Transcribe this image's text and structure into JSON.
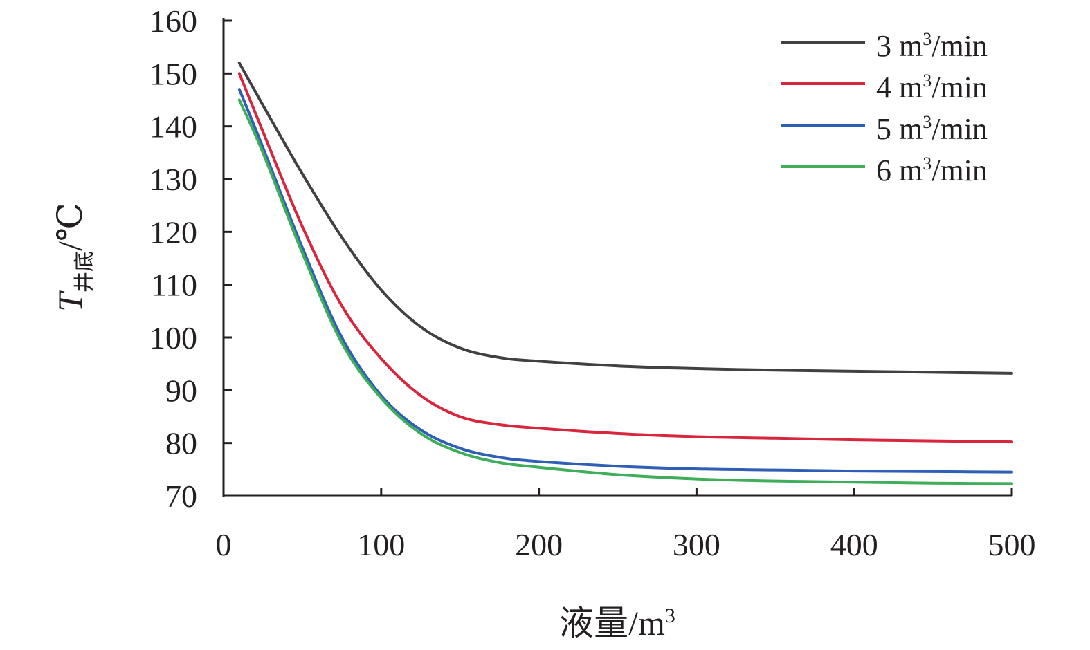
{
  "chart_data": {
    "type": "line",
    "title": "",
    "xlabel": {
      "main": "液量/m",
      "sup": "3"
    },
    "ylabel": {
      "main": "T",
      "sub": "井底",
      "tail": "/℃"
    },
    "xlim": [
      0,
      500
    ],
    "ylim": [
      70,
      160
    ],
    "xticks": [
      0,
      100,
      200,
      300,
      400,
      500
    ],
    "yticks": [
      70,
      80,
      90,
      100,
      110,
      120,
      130,
      140,
      150,
      160
    ],
    "grid": false,
    "legend_position": "top-right",
    "series": [
      {
        "name": {
          "pre": "3 m",
          "sup": "3",
          "post": "/min"
        },
        "color": "#414042",
        "points": [
          [
            10,
            152
          ],
          [
            25,
            144
          ],
          [
            50,
            131
          ],
          [
            75,
            119
          ],
          [
            100,
            109
          ],
          [
            125,
            102
          ],
          [
            150,
            98
          ],
          [
            175,
            96.2
          ],
          [
            200,
            95.5
          ],
          [
            250,
            94.6
          ],
          [
            300,
            94.1
          ],
          [
            350,
            93.8
          ],
          [
            400,
            93.6
          ],
          [
            450,
            93.4
          ],
          [
            500,
            93.2
          ]
        ]
      },
      {
        "name": {
          "pre": "4 m",
          "sup": "3",
          "post": "/min"
        },
        "color": "#d7263d",
        "points": [
          [
            10,
            150
          ],
          [
            25,
            139
          ],
          [
            50,
            121
          ],
          [
            75,
            106
          ],
          [
            100,
            96
          ],
          [
            125,
            89
          ],
          [
            150,
            85
          ],
          [
            175,
            83.5
          ],
          [
            200,
            82.8
          ],
          [
            250,
            81.8
          ],
          [
            300,
            81.2
          ],
          [
            350,
            80.9
          ],
          [
            400,
            80.6
          ],
          [
            450,
            80.4
          ],
          [
            500,
            80.2
          ]
        ]
      },
      {
        "name": {
          "pre": "5 m",
          "sup": "3",
          "post": "/min"
        },
        "color": "#2e5fb5",
        "points": [
          [
            10,
            147
          ],
          [
            25,
            136
          ],
          [
            50,
            117
          ],
          [
            75,
            100
          ],
          [
            100,
            89
          ],
          [
            125,
            82.5
          ],
          [
            150,
            79
          ],
          [
            175,
            77.3
          ],
          [
            200,
            76.5
          ],
          [
            250,
            75.6
          ],
          [
            300,
            75.1
          ],
          [
            350,
            74.9
          ],
          [
            400,
            74.7
          ],
          [
            450,
            74.6
          ],
          [
            500,
            74.5
          ]
        ]
      },
      {
        "name": {
          "pre": "6 m",
          "sup": "3",
          "post": "/min"
        },
        "color": "#3fae5a",
        "points": [
          [
            10,
            145
          ],
          [
            25,
            135
          ],
          [
            50,
            116
          ],
          [
            75,
            99
          ],
          [
            100,
            88.5
          ],
          [
            125,
            81.8
          ],
          [
            150,
            78.2
          ],
          [
            175,
            76.3
          ],
          [
            200,
            75.4
          ],
          [
            250,
            74
          ],
          [
            300,
            73.2
          ],
          [
            350,
            72.8
          ],
          [
            400,
            72.6
          ],
          [
            450,
            72.4
          ],
          [
            500,
            72.3
          ]
        ]
      }
    ]
  }
}
